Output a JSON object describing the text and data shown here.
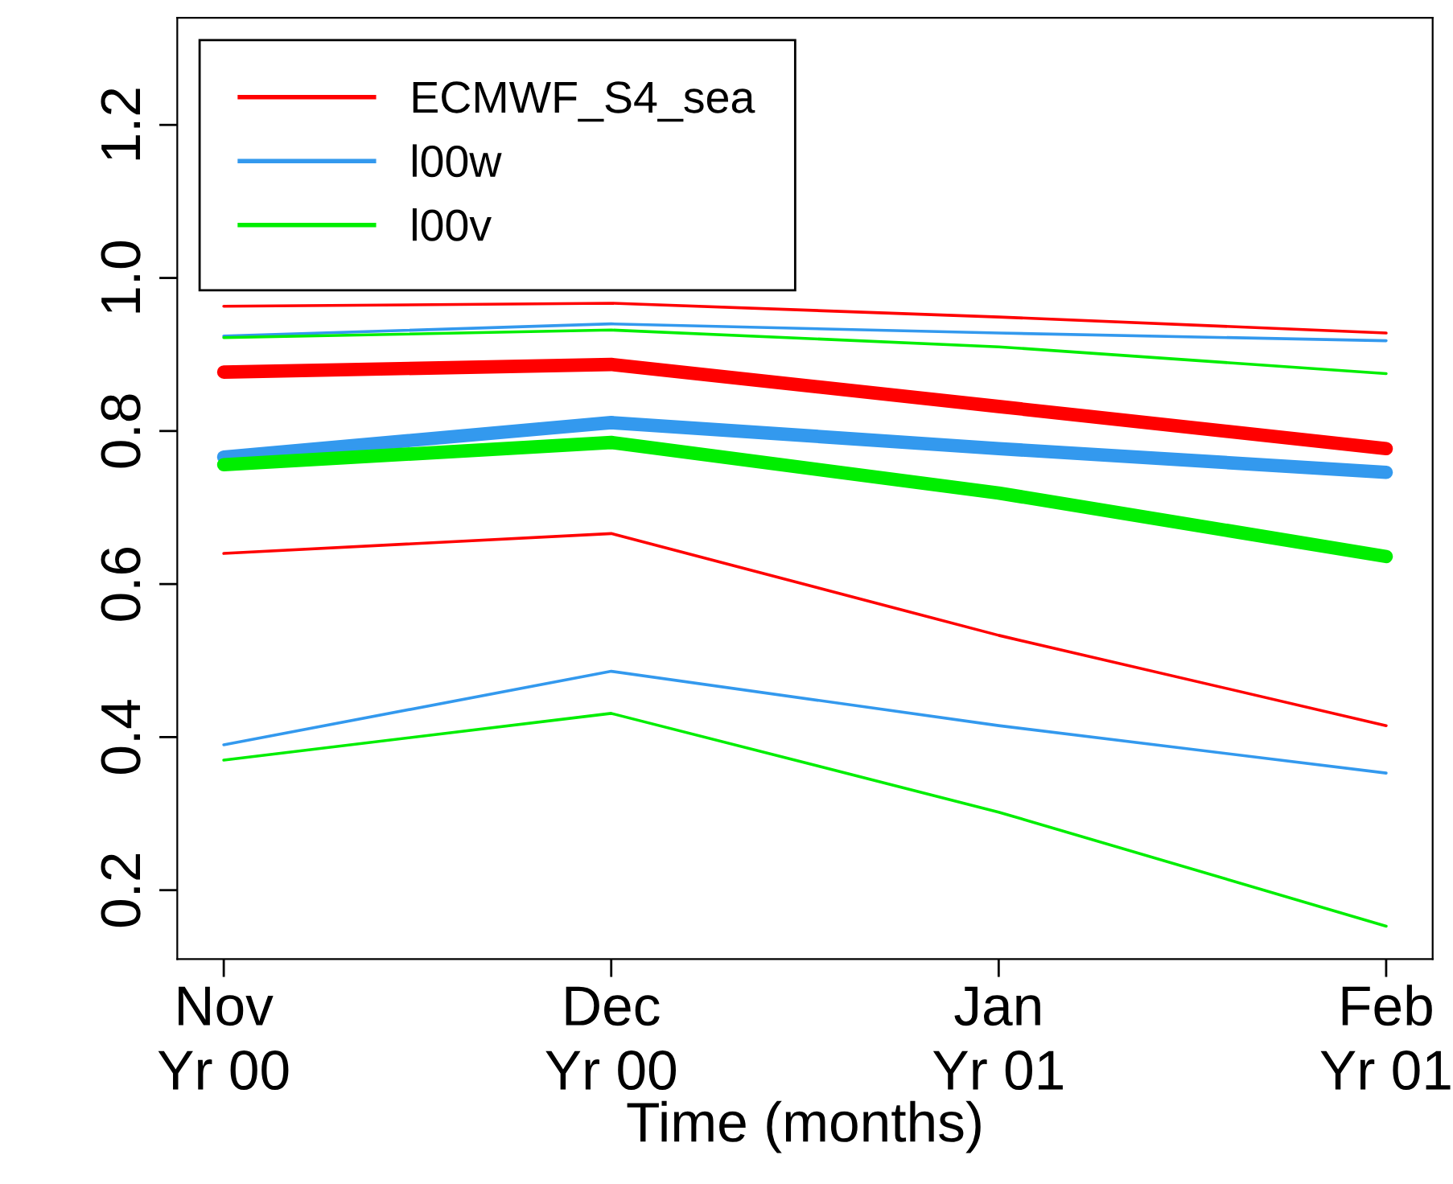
{
  "chart_data": {
    "type": "line",
    "xlabel": "Time (months)",
    "categories": [
      "Nov\nYr 00",
      "Dec\nYr 00",
      "Jan\nYr 01",
      "Feb\nYr 01"
    ],
    "series": [
      {
        "name": "ECMWF_S4_sea",
        "color": "#ff0000",
        "values": [
          0.877,
          0.887,
          0.832,
          0.777
        ]
      },
      {
        "name": "l00w",
        "color": "#3399ee",
        "values": [
          0.766,
          0.811,
          0.777,
          0.746
        ]
      },
      {
        "name": "l00v",
        "color": "#00ee00",
        "values": [
          0.756,
          0.785,
          0.719,
          0.636
        ]
      },
      {
        "color": "#ff0000",
        "values": [
          0.64,
          0.666,
          0.533,
          0.415
        ]
      },
      {
        "color": "#ff0000",
        "values": [
          0.963,
          0.967,
          0.949,
          0.928
        ]
      },
      {
        "color": "#3399ee",
        "values": [
          0.39,
          0.486,
          0.415,
          0.353
        ]
      },
      {
        "color": "#3399ee",
        "values": [
          0.924,
          0.94,
          0.928,
          0.918
        ]
      },
      {
        "color": "#00ee00",
        "values": [
          0.37,
          0.431,
          0.302,
          0.153
        ]
      },
      {
        "color": "#00ee00",
        "values": [
          0.922,
          0.932,
          0.91,
          0.875
        ]
      }
    ],
    "ylim": [
      0.11,
      1.34
    ],
    "yticks": [
      {
        "value": 0.2,
        "label": "0.2"
      },
      {
        "value": 0.4,
        "label": "0.4"
      },
      {
        "value": 0.6,
        "label": "0.6"
      },
      {
        "value": 0.8,
        "label": "0.8"
      },
      {
        "value": 1,
        "label": "1.0"
      },
      {
        "value": 1.2,
        "label": "1.2"
      }
    ],
    "grid": false,
    "legend": "top left"
  }
}
